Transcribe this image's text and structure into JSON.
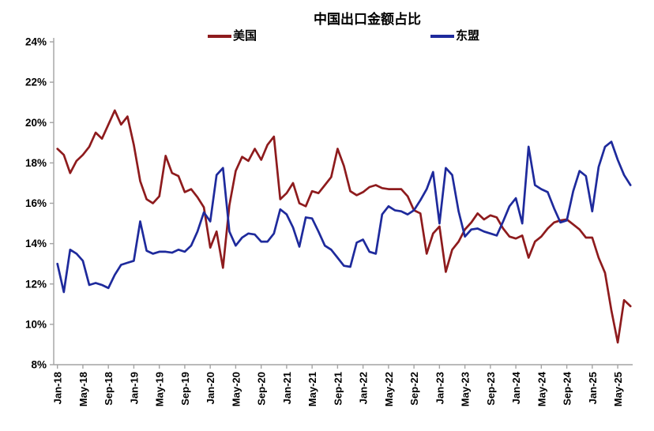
{
  "title": "中国出口金额占比",
  "legend": [
    {
      "label": "美国",
      "color": "#8e1b1d"
    },
    {
      "label": "东盟",
      "color": "#1e2a9c"
    }
  ],
  "colors": {
    "us": "#8e1b1d",
    "asean": "#1e2a9c",
    "axis": "#a3a3a3",
    "text": "#000000"
  },
  "chart_data": {
    "type": "line",
    "title": "中国出口金额占比",
    "xlabel": "",
    "ylabel": "",
    "ylim": [
      8,
      24
    ],
    "y_ticks": [
      8,
      10,
      12,
      14,
      16,
      18,
      20,
      22,
      24
    ],
    "y_tick_suffix": "%",
    "grid": false,
    "legend_position": "top",
    "x_label_every": 4,
    "x": [
      "Jan-18",
      "Feb-18",
      "Mar-18",
      "Apr-18",
      "May-18",
      "Jun-18",
      "Jul-18",
      "Aug-18",
      "Sep-18",
      "Oct-18",
      "Nov-18",
      "Dec-18",
      "Jan-19",
      "Feb-19",
      "Mar-19",
      "Apr-19",
      "May-19",
      "Jun-19",
      "Jul-19",
      "Aug-19",
      "Sep-19",
      "Oct-19",
      "Nov-19",
      "Dec-19",
      "Jan-20",
      "Feb-20",
      "Mar-20",
      "Apr-20",
      "May-20",
      "Jun-20",
      "Jul-20",
      "Aug-20",
      "Sep-20",
      "Oct-20",
      "Nov-20",
      "Dec-20",
      "Jan-21",
      "Feb-21",
      "Mar-21",
      "Apr-21",
      "May-21",
      "Jun-21",
      "Jul-21",
      "Aug-21",
      "Sep-21",
      "Oct-21",
      "Nov-21",
      "Dec-21",
      "Jan-22",
      "Feb-22",
      "Mar-22",
      "Apr-22",
      "May-22",
      "Jun-22",
      "Jul-22",
      "Aug-22",
      "Sep-22",
      "Oct-22",
      "Nov-22",
      "Dec-22",
      "Jan-23",
      "Feb-23",
      "Mar-23",
      "Apr-23",
      "May-23",
      "Jun-23",
      "Jul-23",
      "Aug-23",
      "Sep-23",
      "Oct-23",
      "Nov-23",
      "Dec-23",
      "Jan-24",
      "Feb-24",
      "Mar-24",
      "Apr-24",
      "May-24",
      "Jun-24",
      "Jul-24",
      "Aug-24",
      "Sep-24",
      "Oct-24",
      "Nov-24",
      "Dec-24",
      "Jan-25",
      "Feb-25",
      "Mar-25",
      "Apr-25",
      "May-25",
      "Jun-25",
      "Jul-25"
    ],
    "series": [
      {
        "name": "美国",
        "color": "#8e1b1d",
        "values": [
          18.7,
          18.4,
          17.5,
          18.1,
          18.4,
          18.8,
          19.5,
          19.2,
          19.9,
          20.6,
          19.9,
          20.3,
          18.9,
          17.1,
          16.2,
          16.0,
          16.35,
          18.35,
          17.5,
          17.35,
          16.55,
          16.7,
          16.3,
          15.8,
          13.8,
          14.6,
          12.8,
          15.9,
          17.6,
          18.3,
          18.1,
          18.7,
          18.15,
          18.9,
          19.3,
          16.2,
          16.5,
          17.0,
          16.0,
          15.85,
          16.6,
          16.5,
          16.9,
          17.3,
          18.7,
          17.85,
          16.6,
          16.4,
          16.55,
          16.8,
          16.9,
          16.75,
          16.7,
          16.7,
          16.7,
          16.35,
          15.65,
          15.5,
          13.5,
          14.5,
          14.85,
          12.6,
          13.7,
          14.1,
          14.7,
          15.05,
          15.5,
          15.2,
          15.4,
          15.3,
          14.75,
          14.35,
          14.25,
          14.4,
          13.3,
          14.1,
          14.35,
          14.75,
          15.05,
          15.15,
          15.2,
          14.95,
          14.7,
          14.3,
          14.3,
          13.3,
          12.55,
          10.7,
          9.1,
          11.2,
          10.9
        ]
      },
      {
        "name": "东盟",
        "color": "#1e2a9c",
        "values": [
          13.0,
          11.6,
          13.7,
          13.5,
          13.15,
          11.95,
          12.05,
          11.95,
          11.8,
          12.45,
          12.95,
          13.05,
          13.15,
          15.1,
          13.65,
          13.5,
          13.6,
          13.6,
          13.55,
          13.7,
          13.6,
          13.9,
          14.6,
          15.55,
          15.1,
          17.4,
          17.75,
          14.6,
          13.9,
          14.3,
          14.5,
          14.45,
          14.1,
          14.1,
          14.5,
          15.7,
          15.45,
          14.8,
          13.85,
          15.3,
          15.25,
          14.6,
          13.9,
          13.7,
          13.3,
          12.9,
          12.85,
          14.05,
          14.2,
          13.6,
          13.5,
          15.45,
          15.85,
          15.65,
          15.6,
          15.45,
          15.65,
          16.15,
          16.7,
          17.55,
          15.0,
          17.75,
          17.4,
          15.6,
          14.35,
          14.7,
          14.75,
          14.6,
          14.5,
          14.4,
          15.1,
          15.85,
          16.25,
          15.0,
          18.8,
          16.9,
          16.7,
          16.55,
          15.75,
          15.05,
          15.15,
          16.6,
          17.6,
          17.35,
          15.6,
          17.8,
          18.8,
          19.05,
          18.15,
          17.4,
          16.9
        ]
      }
    ]
  }
}
